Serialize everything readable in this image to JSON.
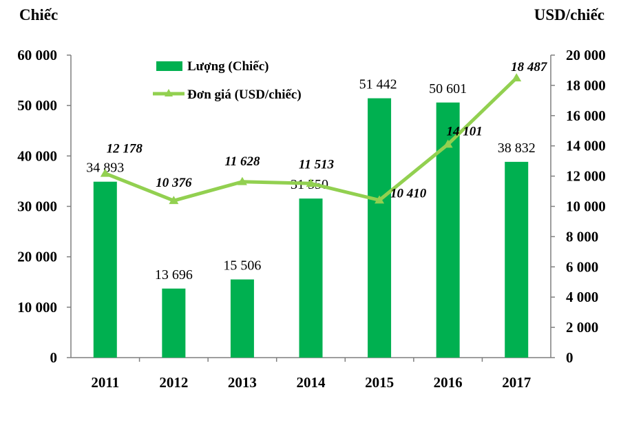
{
  "chart_data": {
    "type": "bar+line",
    "title": "",
    "left_axis_title": "Chiếc",
    "right_axis_title": "USD/chiếc",
    "categories": [
      "2011",
      "2012",
      "2013",
      "2014",
      "2015",
      "2016",
      "2017"
    ],
    "series": [
      {
        "name": "Lượng (Chiếc)",
        "type": "bar",
        "axis": "left",
        "color": "#00b050",
        "values": [
          34893,
          13696,
          15506,
          31550,
          51442,
          50601,
          38832
        ],
        "labels": [
          "34 893",
          "13 696",
          "15 506",
          "31 550",
          "51 442",
          "50 601",
          "38 832"
        ]
      },
      {
        "name": "Đơn giá (USD/chiếc)",
        "type": "line",
        "axis": "right",
        "color": "#92d050",
        "values": [
          12178,
          10376,
          11628,
          11513,
          10410,
          14101,
          18487
        ],
        "labels": [
          "12 178",
          "10 376",
          "11 628",
          "11 513",
          "10 410",
          "14 101",
          "18 487"
        ]
      }
    ],
    "left_axis": {
      "range": [
        0,
        60000
      ],
      "ticks": [
        0,
        10000,
        20000,
        30000,
        40000,
        50000,
        60000
      ],
      "tick_labels": [
        "0",
        "10 000",
        "20 000",
        "30 000",
        "40 000",
        "50 000",
        "60 000"
      ]
    },
    "right_axis": {
      "range": [
        0,
        20000
      ],
      "ticks": [
        0,
        2000,
        4000,
        6000,
        8000,
        10000,
        12000,
        14000,
        16000,
        18000,
        20000
      ],
      "tick_labels": [
        "0",
        "2 000",
        "4 000",
        "6 000",
        "8 000",
        "10 000",
        "12 000",
        "14 000",
        "16 000",
        "18 000",
        "20 000"
      ]
    },
    "grid": false,
    "legend": "top-left"
  }
}
